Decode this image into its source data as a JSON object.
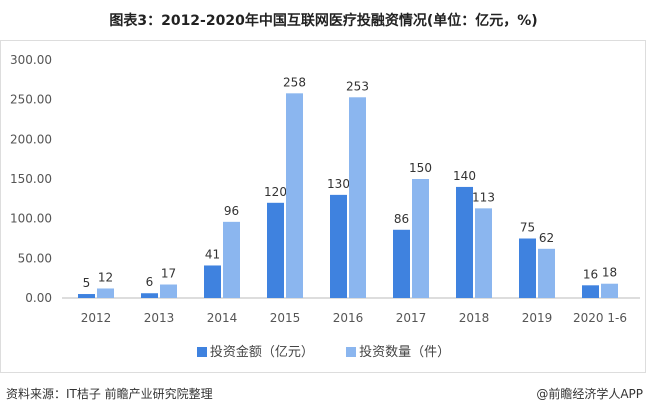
{
  "title": "图表3：2012-2020年中国互联网医疗投融资情况(单位：亿元，%)",
  "chart_data": {
    "type": "bar",
    "title": "图表3：2012-2020年中国互联网医疗投融资情况(单位：亿元，%)",
    "categories": [
      "2012",
      "2013",
      "2014",
      "2015",
      "2016",
      "2017",
      "2018",
      "2019",
      "2020 1-6"
    ],
    "series": [
      {
        "name": "投资金额（亿元）",
        "color": "#3f82df",
        "values": [
          5,
          6,
          41,
          120,
          130,
          86,
          140,
          75,
          16
        ]
      },
      {
        "name": "投资数量（件）",
        "color": "#8bb6ef",
        "values": [
          12,
          17,
          96,
          258,
          253,
          150,
          113,
          62,
          18
        ]
      }
    ],
    "ylim": [
      0,
      300
    ],
    "yticks": [
      "0.00",
      "50.00",
      "100.00",
      "150.00",
      "200.00",
      "250.00",
      "300.00"
    ],
    "grid": false,
    "legend": "bottom"
  },
  "footer": {
    "source": "资料来源：IT桔子 前瞻产业研究院整理",
    "app": "@前瞻经济学人APP"
  }
}
